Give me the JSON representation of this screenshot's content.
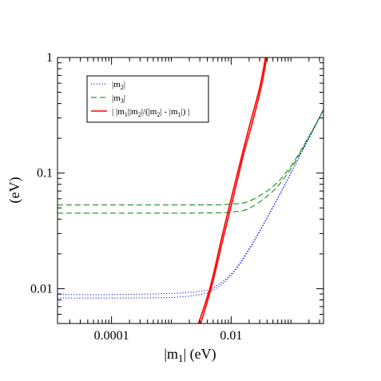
{
  "chart_data": {
    "type": "line",
    "title": "",
    "xlabel": {
      "pre": "|m",
      "sub": "1",
      "post": "| (eV)"
    },
    "ylabel": "(eV)",
    "xscale": "log",
    "yscale": "log",
    "xlim": [
      1.25e-05,
      0.35
    ],
    "ylim": [
      0.005,
      1
    ],
    "grid": false,
    "legend_position": "top-left",
    "x_ticks": [
      {
        "value": 0.0001,
        "label": "0.0001"
      },
      {
        "value": 0.01,
        "label": "0.01"
      }
    ],
    "y_ticks": [
      {
        "value": 0.01,
        "label": "0.01"
      },
      {
        "value": 0.1,
        "label": "0.1"
      },
      {
        "value": 1,
        "label": "1"
      }
    ],
    "legend": [
      {
        "name": "m2",
        "color": "#0000ff",
        "dash": "dotted",
        "parts": [
          {
            "t": "|m"
          },
          {
            "t": "2",
            "sub": true
          },
          {
            "t": "|"
          }
        ]
      },
      {
        "name": "m3",
        "color": "#008000",
        "dash": "dashed",
        "parts": [
          {
            "t": "|m"
          },
          {
            "t": "3",
            "sub": true
          },
          {
            "t": "|"
          }
        ]
      },
      {
        "name": "ratio",
        "color": "#ff0000",
        "dash": "solid",
        "parts": [
          {
            "t": "| |m"
          },
          {
            "t": "1",
            "sub": true
          },
          {
            "t": "||m"
          },
          {
            "t": "2",
            "sub": true
          },
          {
            "t": "|/(|m"
          },
          {
            "t": "2",
            "sub": true
          },
          {
            "t": "| - |m"
          },
          {
            "t": "1",
            "sub": true
          },
          {
            "t": "|) |"
          }
        ]
      }
    ],
    "series": [
      {
        "group": "m2",
        "color": "#0000ff",
        "dash": "dotted",
        "points": [
          [
            1.25e-05,
            0.0089
          ],
          [
            0.0001,
            0.0089
          ],
          [
            0.001,
            0.0091
          ],
          [
            0.003,
            0.0095
          ],
          [
            0.005,
            0.0102
          ],
          [
            0.01,
            0.0134
          ],
          [
            0.02,
            0.0222
          ],
          [
            0.05,
            0.0508
          ],
          [
            0.1,
            0.1004
          ],
          [
            0.2,
            0.2002
          ],
          [
            0.35,
            0.35
          ]
        ]
      },
      {
        "group": "m2",
        "color": "#0000ff",
        "dash": "dotted",
        "points": [
          [
            1.25e-05,
            0.0083
          ],
          [
            0.0001,
            0.0083
          ],
          [
            0.001,
            0.0084
          ],
          [
            0.003,
            0.0089
          ],
          [
            0.005,
            0.0097
          ],
          [
            0.01,
            0.013
          ],
          [
            0.02,
            0.0217
          ],
          [
            0.05,
            0.0507
          ],
          [
            0.1,
            0.1003
          ],
          [
            0.2,
            0.2002
          ],
          [
            0.35,
            0.35
          ]
        ]
      },
      {
        "group": "m3",
        "color": "#008000",
        "dash": "dashed",
        "points": [
          [
            1.25e-05,
            0.053
          ],
          [
            0.0001,
            0.053
          ],
          [
            0.001,
            0.053
          ],
          [
            0.005,
            0.0532
          ],
          [
            0.01,
            0.054
          ],
          [
            0.02,
            0.0572
          ],
          [
            0.05,
            0.0765
          ],
          [
            0.1,
            0.115
          ],
          [
            0.2,
            0.2074
          ],
          [
            0.35,
            0.354
          ]
        ]
      },
      {
        "group": "m3",
        "color": "#008000",
        "dash": "dashed",
        "points": [
          [
            1.25e-05,
            0.045
          ],
          [
            0.0001,
            0.045
          ],
          [
            0.001,
            0.045
          ],
          [
            0.005,
            0.0453
          ],
          [
            0.01,
            0.046
          ],
          [
            0.02,
            0.0495
          ],
          [
            0.05,
            0.0698
          ],
          [
            0.1,
            0.1097
          ],
          [
            0.2,
            0.2048
          ],
          [
            0.35,
            0.353
          ]
        ]
      },
      {
        "group": "ratio",
        "color": "#ff0000",
        "dash": "solid",
        "points": [
          [
            0.00285,
            0.005
          ],
          [
            0.0045,
            0.0105
          ],
          [
            0.007,
            0.028
          ],
          [
            0.01,
            0.06
          ],
          [
            0.015,
            0.14
          ],
          [
            0.02,
            0.25
          ],
          [
            0.03,
            0.55
          ],
          [
            0.0375,
            1
          ]
        ]
      },
      {
        "group": "ratio",
        "color": "#ff0000",
        "dash": "solid",
        "points": [
          [
            0.0031,
            0.005
          ],
          [
            0.0048,
            0.0108
          ],
          [
            0.0075,
            0.0285
          ],
          [
            0.0108,
            0.061
          ],
          [
            0.016,
            0.143
          ],
          [
            0.022,
            0.26
          ],
          [
            0.032,
            0.56
          ],
          [
            0.0392,
            1
          ]
        ]
      }
    ]
  }
}
